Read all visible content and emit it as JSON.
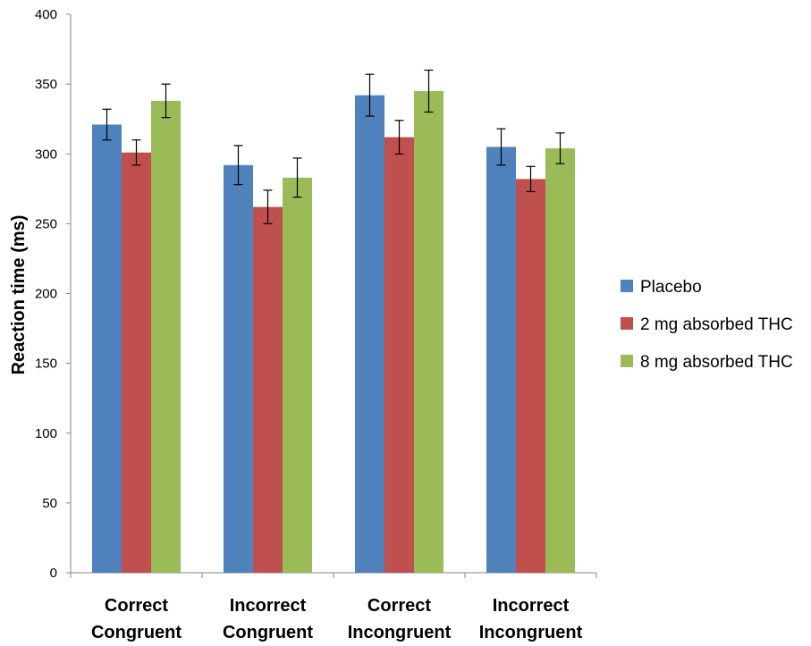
{
  "chart_data": {
    "type": "bar",
    "title": "",
    "xlabel": "",
    "ylabel": "Reaction time (ms)",
    "ylim": [
      0,
      400
    ],
    "yticks": [
      0,
      50,
      100,
      150,
      200,
      250,
      300,
      350,
      400
    ],
    "ytick_labels": [
      "0",
      "50",
      "100",
      "150",
      "200",
      "250",
      "300",
      "350",
      "400"
    ],
    "categories": [
      [
        "Correct",
        "Congruent"
      ],
      [
        "Incorrect",
        "Congruent"
      ],
      [
        "Correct",
        "Incongruent"
      ],
      [
        "Incorrect",
        "Incongruent"
      ]
    ],
    "series": [
      {
        "name": "Placebo",
        "color": "#4F81BD",
        "values": [
          321,
          292,
          342,
          305
        ],
        "errors": [
          11,
          14,
          15,
          13
        ]
      },
      {
        "name": "2 mg absorbed THC",
        "color": "#C0504D",
        "values": [
          301,
          262,
          312,
          282
        ],
        "errors": [
          9,
          12,
          12,
          9
        ]
      },
      {
        "name": "8 mg absorbed THC",
        "color": "#9BBB59",
        "values": [
          338,
          283,
          345,
          304
        ],
        "errors": [
          12,
          14,
          15,
          11
        ]
      }
    ],
    "grid": false,
    "legend_position": "right"
  }
}
